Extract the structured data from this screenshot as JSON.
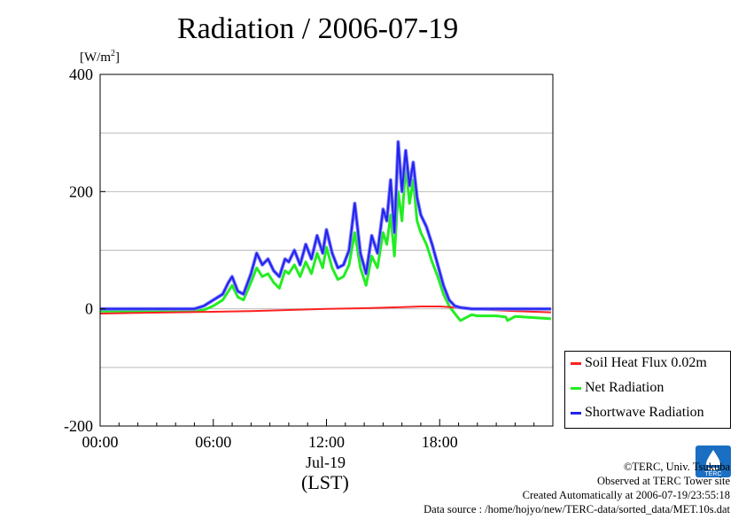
{
  "title": "Radiation / 2006-07-19",
  "unit": "[W/m²]",
  "x_date_label": "Jul-19",
  "x_timezone_label": "(LST)",
  "credits": [
    "©TERC, Univ. Tsukuba",
    "Observed at TERC Tower site",
    "Created Automatically at 2006-07-19/23:55:18",
    "Data source : /home/hojyo/new/TERC-data/sorted_data/MET.10s.dat"
  ],
  "logo_text": "TERC",
  "colors": {
    "soil": "#ff2020",
    "net": "#22ee22",
    "shortwave": "#2222ee",
    "shortwave_halo": "#8080ff",
    "grid": "#bbbbbb"
  },
  "chart_data": {
    "type": "line",
    "title": "Radiation / 2006-07-19",
    "ylabel": "[W/m²]",
    "xlabel": "Jul-19 (LST)",
    "xlim": [
      0,
      24
    ],
    "ylim": [
      -200,
      400
    ],
    "x_ticks": [
      0,
      6,
      12,
      18
    ],
    "x_tick_labels": [
      "00:00",
      "06:00",
      "12:00",
      "18:00"
    ],
    "y_ticks": [
      -200,
      0,
      200,
      400
    ],
    "y_tick_labels": [
      "-200",
      "0",
      "200",
      "400"
    ],
    "y_gridlines": [
      -100,
      0,
      100,
      200,
      300
    ],
    "grid": true,
    "legend_position": "bottom-right, outside",
    "series": [
      {
        "name": "Soil Heat Flux 0.02m",
        "color": "#ff2020",
        "x": [
          0,
          2,
          4,
          6,
          8,
          10,
          12,
          14,
          16,
          17,
          18,
          19,
          20,
          22,
          23.9
        ],
        "y": [
          -8,
          -7,
          -6,
          -5,
          -4,
          -2,
          0,
          1,
          3,
          4,
          4,
          2,
          -1,
          -4,
          -6
        ]
      },
      {
        "name": "Net Radiation",
        "color": "#22ee22",
        "x": [
          0,
          4,
          5,
          5.5,
          6,
          6.5,
          6.8,
          7,
          7.3,
          7.6,
          8,
          8.3,
          8.6,
          8.9,
          9.2,
          9.5,
          9.8,
          10,
          10.3,
          10.6,
          10.9,
          11.2,
          11.5,
          11.8,
          12,
          12.3,
          12.6,
          12.9,
          13.2,
          13.5,
          13.8,
          14.1,
          14.4,
          14.7,
          15,
          15.2,
          15.4,
          15.6,
          15.8,
          16,
          16.2,
          16.4,
          16.6,
          16.8,
          17,
          17.3,
          17.6,
          17.9,
          18.2,
          18.5,
          18.8,
          19.1,
          19.4,
          19.7,
          20,
          21,
          21.5,
          21.6,
          22,
          23,
          23.9
        ],
        "y": [
          -4,
          -4,
          -4,
          -2,
          5,
          15,
          30,
          40,
          20,
          15,
          45,
          70,
          55,
          60,
          45,
          35,
          65,
          60,
          75,
          55,
          80,
          60,
          95,
          70,
          105,
          70,
          50,
          55,
          75,
          130,
          70,
          40,
          90,
          70,
          130,
          110,
          160,
          90,
          200,
          150,
          245,
          180,
          220,
          150,
          130,
          110,
          80,
          55,
          25,
          5,
          -8,
          -20,
          -15,
          -10,
          -12,
          -12,
          -14,
          -20,
          -13,
          -15,
          -17
        ]
      },
      {
        "name": "Shortwave Radiation",
        "color": "#2222ee",
        "x": [
          0,
          4,
          5,
          5.5,
          6,
          6.5,
          6.8,
          7,
          7.3,
          7.6,
          8,
          8.3,
          8.6,
          8.9,
          9.2,
          9.5,
          9.8,
          10,
          10.3,
          10.6,
          10.9,
          11.2,
          11.5,
          11.8,
          12,
          12.3,
          12.6,
          12.9,
          13.2,
          13.5,
          13.8,
          14.1,
          14.4,
          14.7,
          15,
          15.2,
          15.4,
          15.6,
          15.8,
          16,
          16.2,
          16.4,
          16.6,
          16.8,
          17,
          17.3,
          17.6,
          17.9,
          18.2,
          18.5,
          18.8,
          19.1,
          19.4,
          19.7,
          20,
          21,
          22,
          23,
          23.9
        ],
        "y": [
          0,
          0,
          0,
          5,
          15,
          25,
          45,
          55,
          30,
          25,
          60,
          95,
          75,
          85,
          65,
          55,
          85,
          80,
          100,
          75,
          110,
          85,
          125,
          95,
          135,
          95,
          70,
          75,
          100,
          180,
          95,
          60,
          125,
          95,
          170,
          150,
          220,
          130,
          285,
          200,
          270,
          210,
          250,
          190,
          160,
          140,
          110,
          75,
          40,
          15,
          5,
          2,
          1,
          0,
          0,
          0,
          0,
          0,
          0
        ]
      }
    ]
  }
}
